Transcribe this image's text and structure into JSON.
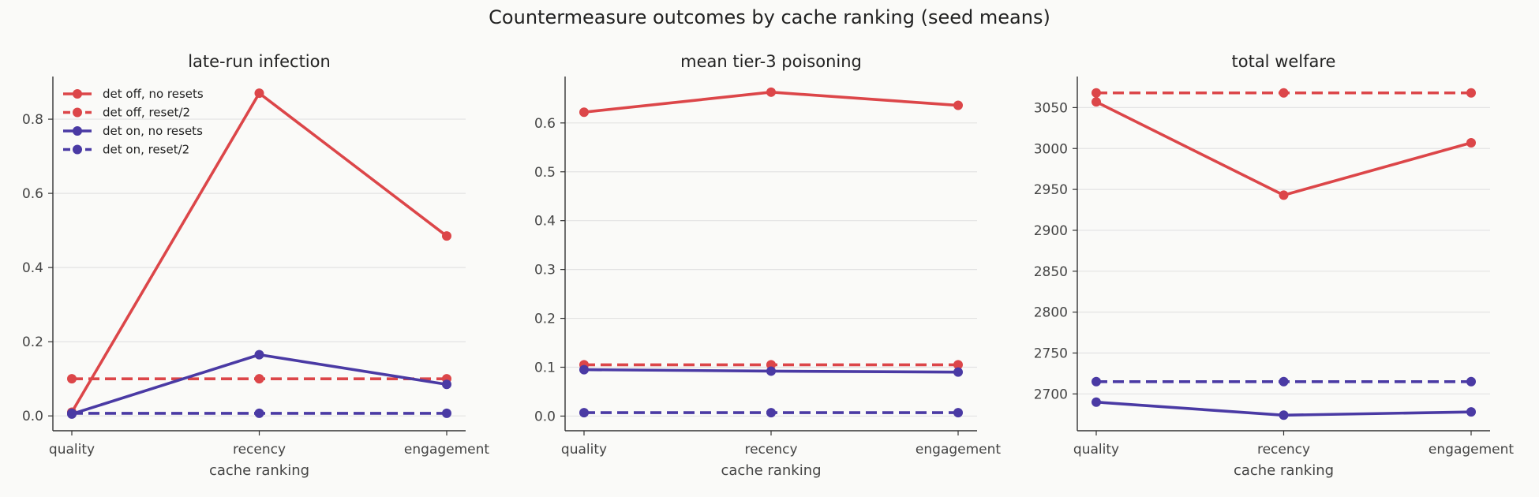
{
  "figure": {
    "title": "Countermeasure outcomes by cache ranking (seed means)"
  },
  "colors": {
    "det_off": "#dc4649",
    "det_on": "#4a3aa4",
    "grid": "#e3e3e3",
    "axis": "#333333"
  },
  "legend": {
    "placement": "top-left of first panel",
    "entries": [
      {
        "label": "det off, no resets",
        "color": "#dc4649",
        "style": "solid"
      },
      {
        "label": "det off, reset/2",
        "color": "#dc4649",
        "style": "dashed"
      },
      {
        "label": "det on, no resets",
        "color": "#4a3aa4",
        "style": "solid"
      },
      {
        "label": "det on, reset/2",
        "color": "#4a3aa4",
        "style": "dashed"
      }
    ]
  },
  "chart_data": [
    {
      "type": "line",
      "title": "late-run infection",
      "xlabel": "cache ranking",
      "ylabel": "",
      "categories": [
        "quality",
        "recency",
        "engagement"
      ],
      "ylim": [
        -0.04,
        0.915
      ],
      "yticks": [
        0.0,
        0.2,
        0.4,
        0.6,
        0.8
      ],
      "ytick_labels": [
        "0.0",
        "0.2",
        "0.4",
        "0.6",
        "0.8"
      ],
      "grid": "horizontal",
      "series": [
        {
          "name": "det off, no resets",
          "color": "#dc4649",
          "style": "solid",
          "values": [
            0.01,
            0.87,
            0.485
          ]
        },
        {
          "name": "det off, reset/2",
          "color": "#dc4649",
          "style": "dashed",
          "values": [
            0.1,
            0.1,
            0.1
          ]
        },
        {
          "name": "det on, no resets",
          "color": "#4a3aa4",
          "style": "solid",
          "values": [
            0.005,
            0.165,
            0.085
          ]
        },
        {
          "name": "det on, reset/2",
          "color": "#4a3aa4",
          "style": "dashed",
          "values": [
            0.007,
            0.007,
            0.007
          ]
        }
      ]
    },
    {
      "type": "line",
      "title": "mean tier-3 poisoning",
      "xlabel": "cache ranking",
      "ylabel": "",
      "categories": [
        "quality",
        "recency",
        "engagement"
      ],
      "ylim": [
        -0.03,
        0.695
      ],
      "yticks": [
        0.0,
        0.1,
        0.2,
        0.3,
        0.4,
        0.5,
        0.6
      ],
      "ytick_labels": [
        "0.0",
        "0.1",
        "0.2",
        "0.3",
        "0.4",
        "0.5",
        "0.6"
      ],
      "grid": "horizontal",
      "series": [
        {
          "name": "det off, no resets",
          "color": "#dc4649",
          "style": "solid",
          "values": [
            0.622,
            0.663,
            0.636
          ]
        },
        {
          "name": "det off, reset/2",
          "color": "#dc4649",
          "style": "dashed",
          "values": [
            0.105,
            0.105,
            0.105
          ]
        },
        {
          "name": "det on, no resets",
          "color": "#4a3aa4",
          "style": "solid",
          "values": [
            0.095,
            0.092,
            0.09
          ]
        },
        {
          "name": "det on, reset/2",
          "color": "#4a3aa4",
          "style": "dashed",
          "values": [
            0.007,
            0.007,
            0.007
          ]
        }
      ]
    },
    {
      "type": "line",
      "title": "total welfare",
      "xlabel": "cache ranking",
      "ylabel": "",
      "categories": [
        "quality",
        "recency",
        "engagement"
      ],
      "ylim": [
        2655,
        3088
      ],
      "yticks": [
        2700,
        2750,
        2800,
        2850,
        2900,
        2950,
        3000,
        3050
      ],
      "ytick_labels": [
        "2700",
        "2750",
        "2800",
        "2850",
        "2900",
        "2950",
        "3000",
        "3050"
      ],
      "grid": "horizontal",
      "series": [
        {
          "name": "det off, no resets",
          "color": "#dc4649",
          "style": "solid",
          "values": [
            3057,
            2943,
            3007
          ]
        },
        {
          "name": "det off, reset/2",
          "color": "#dc4649",
          "style": "dashed",
          "values": [
            3068,
            3068,
            3068
          ]
        },
        {
          "name": "det on, no resets",
          "color": "#4a3aa4",
          "style": "solid",
          "values": [
            2690,
            2674,
            2678
          ]
        },
        {
          "name": "det on, reset/2",
          "color": "#4a3aa4",
          "style": "dashed",
          "values": [
            2715,
            2715,
            2715
          ]
        }
      ]
    }
  ]
}
